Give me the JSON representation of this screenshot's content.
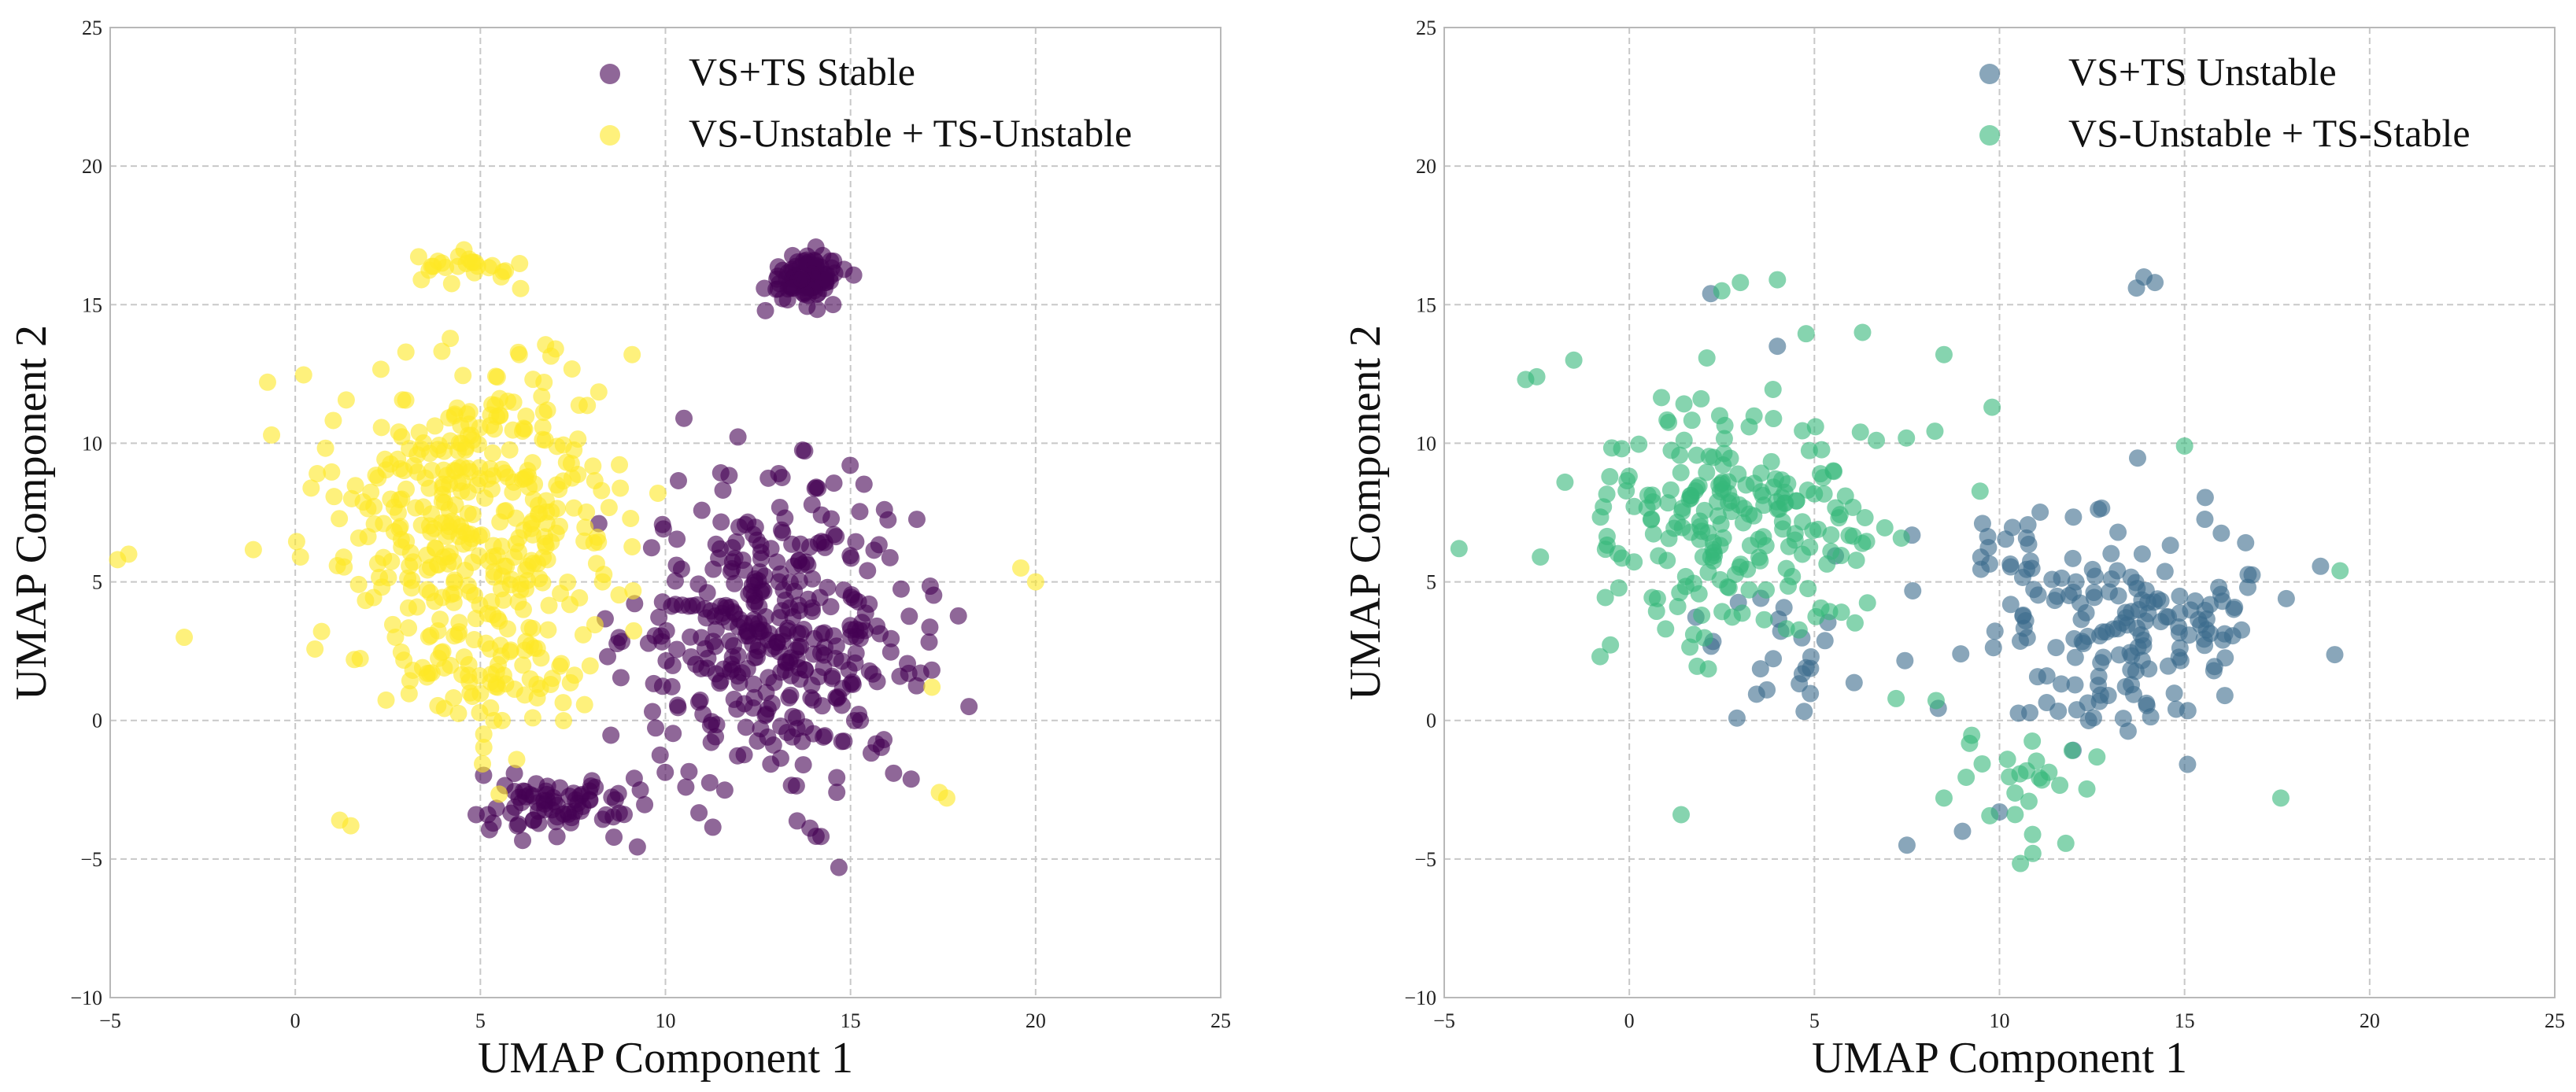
{
  "chart_data": [
    {
      "type": "scatter",
      "xlabel": "UMAP Component 1",
      "ylabel": "UMAP Component 2",
      "xlim": [
        -5,
        25
      ],
      "ylim": [
        -10,
        25
      ],
      "xticks": [
        -5,
        0,
        5,
        10,
        15,
        20,
        25
      ],
      "yticks": [
        -10,
        -5,
        0,
        5,
        10,
        15,
        20,
        25
      ],
      "xtick_labels": [
        "−5",
        "0",
        "5",
        "10",
        "15",
        "20",
        "25"
      ],
      "ytick_labels": [
        "−10",
        "−5",
        "0",
        "5",
        "10",
        "15",
        "20",
        "25"
      ],
      "grid": true,
      "legend_position": "top-right",
      "series": [
        {
          "name": "VS+TS Stable",
          "color": "#440154",
          "clusters": [
            {
              "center": [
                13.8,
                16.0
              ],
              "spread": [
                1.0,
                0.8
              ],
              "count": 90
            },
            {
              "center": [
                13.0,
                3.0
              ],
              "spread": [
                3.5,
                4.8
              ],
              "count": 380
            },
            {
              "center": [
                7.0,
                -3.0
              ],
              "spread": [
                1.8,
                1.0
              ],
              "count": 70
            }
          ],
          "points": [
            [
              6.0,
              -3.8
            ],
            [
              5.2,
              -3.4
            ],
            [
              18.2,
              0.5
            ],
            [
              8.2,
              7.1
            ],
            [
              10.5,
              10.9
            ]
          ]
        },
        {
          "name": "VS-Unstable + TS-Unstable",
          "color": "#FDE725",
          "clusters": [
            {
              "center": [
                5.0,
                7.5
              ],
              "spread": [
                3.5,
                5.5
              ],
              "count": 380
            },
            {
              "center": [
                4.6,
                16.3
              ],
              "spread": [
                1.4,
                0.5
              ],
              "count": 25
            },
            {
              "center": [
                5.5,
                1.5
              ],
              "spread": [
                2.5,
                1.5
              ],
              "count": 60
            }
          ],
          "points": [
            [
              -4.8,
              5.8
            ],
            [
              -4.5,
              6.0
            ],
            [
              -3.0,
              3.0
            ],
            [
              1.2,
              -3.6
            ],
            [
              1.5,
              -3.8
            ],
            [
              17.4,
              -2.6
            ],
            [
              17.6,
              -2.8
            ],
            [
              19.6,
              5.5
            ],
            [
              20.0,
              5.0
            ],
            [
              17.2,
              1.2
            ],
            [
              8.3,
              5.0
            ],
            [
              9.1,
              13.2
            ]
          ]
        }
      ]
    },
    {
      "type": "scatter",
      "xlabel": "UMAP Component 1",
      "ylabel": "UMAP Component 2",
      "xlim": [
        -5,
        25
      ],
      "ylim": [
        -10,
        25
      ],
      "xticks": [
        -5,
        0,
        5,
        10,
        15,
        20,
        25
      ],
      "yticks": [
        -10,
        -5,
        0,
        5,
        10,
        15,
        20,
        25
      ],
      "xtick_labels": [
        "−5",
        "0",
        "5",
        "10",
        "15",
        "20",
        "25"
      ],
      "ytick_labels": [
        "−10",
        "−5",
        "0",
        "5",
        "10",
        "15",
        "20",
        "25"
      ],
      "grid": true,
      "legend_position": "top-right",
      "series": [
        {
          "name": "VS+TS Unstable",
          "color": "#3B6A8C",
          "clusters": [
            {
              "center": [
                13.0,
                4.0
              ],
              "spread": [
                4.0,
                4.0
              ],
              "count": 180
            },
            {
              "center": [
                4.0,
                2.5
              ],
              "spread": [
                2.0,
                2.5
              ],
              "count": 25
            }
          ],
          "points": [
            [
              13.9,
              16.0
            ],
            [
              14.2,
              15.8
            ],
            [
              13.7,
              15.6
            ],
            [
              4.0,
              13.5
            ],
            [
              2.2,
              15.4
            ],
            [
              10.0,
              -3.3
            ],
            [
              7.5,
              -4.5
            ],
            [
              9.0,
              -4.0
            ]
          ]
        },
        {
          "name": "VS-Unstable + TS-Stable",
          "color": "#35B779",
          "clusters": [
            {
              "center": [
                3.0,
                7.0
              ],
              "spread": [
                3.5,
                4.0
              ],
              "count": 220
            },
            {
              "center": [
                10.5,
                -2.0
              ],
              "spread": [
                2.0,
                2.0
              ],
              "count": 25
            }
          ],
          "points": [
            [
              -4.6,
              6.2
            ],
            [
              -2.8,
              12.3
            ],
            [
              -2.5,
              12.4
            ],
            [
              -1.5,
              13.0
            ],
            [
              1.4,
              -3.4
            ],
            [
              2.5,
              15.5
            ],
            [
              3.0,
              15.8
            ],
            [
              4.0,
              15.9
            ],
            [
              17.6,
              -2.8
            ],
            [
              19.2,
              5.4
            ],
            [
              15.0,
              9.9
            ],
            [
              6.3,
              14.0
            ],
            [
              8.5,
              13.2
            ],
            [
              9.8,
              11.3
            ],
            [
              10.9,
              -4.8
            ],
            [
              8.5,
              -2.8
            ]
          ]
        }
      ]
    }
  ]
}
